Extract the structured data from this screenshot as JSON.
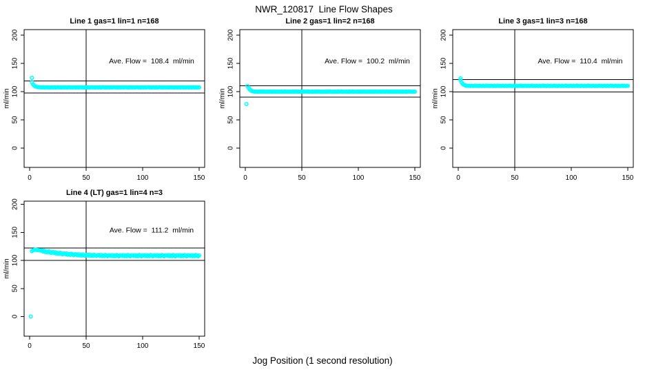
{
  "figure": {
    "title": "NWR_120817  Line Flow Shapes",
    "xlabel": "Jog Position (1 second resolution)",
    "background_color": "#ffffff",
    "point_color": "#00ffff",
    "line_color": "#000000",
    "point_style": "open-circle"
  },
  "chart_data": [
    {
      "type": "scatter",
      "id": "line-1",
      "title": "Line 1 gas=1 lin=1 n=168",
      "line": "Line 1",
      "gas": 1,
      "lin": 1,
      "n": 168,
      "annotation": "Ave. Flow =  108.4  ml/min",
      "ave_flow": 108.4,
      "ylabel": "ml/min",
      "x_ticks": [
        0,
        50,
        100,
        150
      ],
      "y_ticks": [
        0,
        50,
        100,
        150,
        200
      ],
      "xlim": [
        -5,
        155
      ],
      "ylim": [
        -36,
        210
      ],
      "vline_x": 50,
      "hlines": [
        119.2,
        97.6
      ],
      "grid_pos": {
        "row": 0,
        "col": 0
      },
      "outliers": [
        [
          2,
          124.5
        ]
      ],
      "x_start": 2,
      "y_values": [
        116.8,
        112.9,
        110.7,
        109.4,
        108.6,
        108.1,
        107.9,
        107.7,
        107.6,
        107.3,
        107.8,
        107.2,
        107.5,
        107.9,
        107.4,
        107.6,
        107.2,
        107.7,
        107.5,
        107.3,
        107.8,
        107.2,
        107.5,
        107.9,
        107.4,
        107.6,
        107.2,
        107.7,
        107.5,
        107.3,
        107.8,
        107.2,
        107.5,
        107.9,
        107.4,
        107.6,
        107.2,
        107.7,
        107.5,
        107.3,
        107.8,
        107.2,
        107.5,
        107.9,
        107.4,
        107.6,
        107.2,
        107.7,
        107.5,
        107.3,
        107.8,
        107.2,
        107.5,
        107.9,
        107.4,
        107.6,
        107.2,
        107.7,
        107.5,
        107.3,
        107.8,
        107.2,
        107.5,
        107.9,
        107.4,
        107.6,
        107.2,
        107.7,
        107.5,
        107.3,
        107.8,
        107.2,
        107.5,
        107.9,
        107.4,
        107.6,
        107.2,
        107.7,
        107.5,
        107.3,
        107.8,
        107.2,
        107.5,
        107.9,
        107.4,
        107.6,
        107.2,
        107.7,
        107.5,
        107.3,
        107.8,
        107.2,
        107.5,
        107.9,
        107.4,
        107.6,
        107.2,
        107.7,
        107.5,
        107.3,
        107.8,
        107.2,
        107.5,
        107.9,
        107.4,
        107.6,
        107.2,
        107.7,
        107.5,
        107.3,
        107.8,
        107.2,
        107.5,
        107.9,
        107.4,
        107.6,
        107.2,
        107.7,
        107.5,
        107.3,
        107.8,
        107.2,
        107.5,
        107.9,
        107.4,
        107.6,
        107.2,
        107.7,
        107.5,
        107.3,
        107.8,
        107.2,
        107.5,
        107.9,
        107.4,
        107.6,
        107.2,
        107.7,
        107.5,
        107.3,
        107.8,
        107.2,
        107.5,
        107.9,
        107.4,
        107.6,
        107.2,
        107.7,
        107.5
      ]
    },
    {
      "type": "scatter",
      "id": "line-2",
      "title": "Line 2 gas=1 lin=2 n=168",
      "line": "Line 2",
      "gas": 1,
      "lin": 2,
      "n": 168,
      "annotation": "Ave. Flow =  100.2  ml/min",
      "ave_flow": 100.2,
      "ylabel": "ml/min",
      "x_ticks": [
        0,
        50,
        100,
        150
      ],
      "y_ticks": [
        0,
        50,
        100,
        150,
        200
      ],
      "xlim": [
        -5,
        155
      ],
      "ylim": [
        -36,
        210
      ],
      "vline_x": 50,
      "hlines": [
        110.2,
        90.2
      ],
      "grid_pos": {
        "row": 0,
        "col": 1
      },
      "outliers": [
        [
          1,
          78
        ]
      ],
      "x_start": 2,
      "y_values": [
        110.0,
        106.3,
        103.8,
        102.1,
        101.0,
        100.4,
        100.1,
        100.0,
        99.9,
        99.7,
        100.2,
        99.6,
        99.9,
        100.3,
        99.8,
        100.0,
        99.6,
        100.1,
        99.9,
        99.7,
        100.2,
        99.6,
        99.9,
        100.3,
        99.8,
        100.0,
        99.6,
        100.1,
        99.9,
        99.7,
        100.2,
        99.6,
        99.9,
        100.3,
        99.8,
        100.0,
        99.6,
        100.1,
        99.9,
        99.7,
        100.2,
        99.6,
        99.9,
        100.3,
        99.8,
        100.0,
        99.6,
        100.1,
        99.9,
        99.7,
        100.2,
        99.6,
        99.9,
        100.3,
        99.8,
        100.0,
        99.6,
        100.1,
        99.9,
        99.7,
        100.2,
        99.6,
        99.9,
        100.3,
        99.8,
        100.0,
        99.6,
        100.1,
        99.9,
        99.7,
        100.2,
        99.6,
        99.9,
        100.3,
        99.8,
        100.0,
        99.6,
        100.1,
        99.9,
        99.7,
        100.2,
        99.6,
        99.9,
        100.3,
        99.8,
        100.0,
        99.6,
        100.1,
        99.9,
        99.7,
        100.2,
        99.6,
        99.9,
        100.3,
        99.8,
        100.0,
        99.6,
        100.1,
        99.9,
        99.7,
        100.2,
        99.6,
        99.9,
        100.3,
        99.8,
        100.0,
        99.6,
        100.1,
        99.9,
        99.7,
        100.2,
        99.6,
        99.9,
        100.3,
        99.8,
        100.0,
        99.6,
        100.1,
        99.9,
        99.7,
        100.2,
        99.6,
        99.9,
        100.3,
        99.8,
        100.0,
        99.6,
        100.1,
        99.9,
        99.7,
        100.2,
        99.6,
        99.9,
        100.3,
        99.8,
        100.0,
        99.6,
        100.1,
        99.9,
        99.7,
        100.2,
        99.6,
        99.9,
        100.3,
        99.8,
        100.0,
        99.6,
        100.1,
        99.9
      ]
    },
    {
      "type": "scatter",
      "id": "line-3",
      "title": "Line 3 gas=1 lin=3 n=168",
      "line": "Line 3",
      "gas": 1,
      "lin": 3,
      "n": 168,
      "annotation": "Ave. Flow =  110.4  ml/min",
      "ave_flow": 110.4,
      "ylabel": "ml/min",
      "x_ticks": [
        0,
        50,
        100,
        150
      ],
      "y_ticks": [
        0,
        50,
        100,
        150,
        200
      ],
      "xlim": [
        -5,
        155
      ],
      "ylim": [
        -36,
        210
      ],
      "vline_x": 50,
      "hlines": [
        121.4,
        99.4
      ],
      "grid_pos": {
        "row": 0,
        "col": 2
      },
      "outliers": [
        [
          2,
          123.5
        ]
      ],
      "x_start": 2,
      "y_values": [
        120.5,
        116.2,
        113.6,
        112.0,
        111.1,
        110.6,
        110.4,
        110.3,
        110.2,
        110.0,
        110.5,
        109.9,
        110.2,
        110.6,
        110.1,
        110.3,
        109.9,
        110.4,
        110.2,
        110.0,
        110.5,
        109.9,
        110.2,
        110.6,
        110.1,
        110.3,
        109.9,
        110.4,
        110.2,
        110.0,
        110.5,
        109.9,
        110.2,
        110.6,
        110.1,
        110.3,
        109.9,
        110.4,
        110.2,
        110.0,
        110.5,
        109.9,
        110.2,
        110.6,
        110.1,
        110.3,
        109.9,
        110.4,
        110.2,
        110.0,
        110.5,
        109.9,
        110.2,
        110.6,
        110.1,
        110.3,
        109.9,
        110.4,
        110.2,
        110.0,
        110.5,
        109.9,
        110.2,
        110.6,
        110.1,
        110.3,
        109.9,
        110.4,
        110.2,
        110.0,
        110.5,
        109.9,
        110.2,
        110.6,
        110.1,
        110.3,
        109.9,
        110.4,
        110.2,
        110.0,
        110.5,
        109.9,
        110.2,
        110.6,
        110.1,
        110.3,
        109.9,
        110.4,
        110.2,
        110.0,
        110.5,
        109.9,
        110.2,
        110.6,
        110.1,
        110.3,
        109.9,
        110.4,
        110.2,
        110.0,
        110.5,
        109.9,
        110.2,
        110.6,
        110.1,
        110.3,
        109.9,
        110.4,
        110.2,
        110.0,
        110.5,
        109.9,
        110.2,
        110.6,
        110.1,
        110.3,
        109.9,
        110.4,
        110.2,
        110.0,
        110.5,
        109.9,
        110.2,
        110.6,
        110.1,
        110.3,
        109.9,
        110.4,
        110.2,
        110.0,
        110.5,
        109.9,
        110.2,
        110.6,
        110.1,
        110.3,
        109.9,
        110.4,
        110.2,
        110.0,
        110.5,
        109.9,
        110.2,
        110.6,
        110.1,
        110.3,
        109.9,
        110.4,
        110.2
      ]
    },
    {
      "type": "scatter",
      "id": "line-4",
      "title": "Line 4 (LT) gas=1 lin=4 n=3",
      "line": "Line 4 (LT)",
      "gas": 1,
      "lin": 4,
      "n": 3,
      "annotation": "Ave. Flow =  111.2  ml/min",
      "ave_flow": 111.2,
      "ylabel": "ml/min",
      "x_ticks": [
        0,
        50,
        100,
        150
      ],
      "y_ticks": [
        0,
        50,
        100,
        150,
        200
      ],
      "xlim": [
        -5,
        155
      ],
      "ylim": [
        -36,
        210
      ],
      "vline_x": 50,
      "hlines": [
        122.3,
        100.1
      ],
      "grid_pos": {
        "row": 1,
        "col": 0
      },
      "outliers": [
        [
          1,
          0
        ]
      ],
      "x_start": 2,
      "y_values": [
        116.5,
        117.8,
        118.6,
        119.0,
        118.8,
        118.5,
        118.2,
        117.8,
        117.4,
        117.7,
        115.9,
        117.3,
        114.8,
        115.8,
        114.3,
        116.1,
        114.7,
        113.2,
        114.6,
        114.6,
        112.9,
        114.4,
        112.0,
        113.1,
        111.7,
        113.6,
        112.3,
        110.9,
        112.4,
        112.4,
        110.9,
        112.4,
        110.1,
        111.3,
        109.9,
        111.9,
        110.6,
        109.3,
        110.9,
        111.0,
        109.4,
        111.0,
        108.8,
        110.0,
        108.7,
        110.7,
        109.6,
        108.3,
        109.9,
        110.0,
        108.6,
        110.2,
        108.0,
        109.3,
        108.0,
        110.1,
        108.9,
        107.7,
        109.3,
        109.5,
        108.1,
        109.7,
        107.6,
        108.9,
        107.6,
        109.7,
        108.6,
        107.4,
        109.0,
        109.2,
        107.8,
        109.5,
        107.4,
        108.7,
        107.5,
        109.6,
        108.5,
        107.3,
        109.0,
        109.2,
        107.8,
        109.5,
        107.4,
        108.7,
        107.5,
        109.6,
        108.5,
        107.3,
        109.0,
        109.2,
        107.8,
        109.5,
        107.4,
        108.7,
        107.5,
        109.6,
        108.5,
        107.3,
        109.0,
        109.2,
        107.8,
        109.5,
        107.4,
        108.7,
        107.5,
        109.6,
        108.5,
        107.3,
        109.0,
        109.2,
        107.8,
        109.5,
        107.4,
        108.7,
        107.5,
        109.6,
        108.5,
        107.3,
        109.0,
        109.2,
        107.8,
        109.5,
        107.4,
        108.7,
        107.5,
        109.6,
        108.5,
        107.3,
        109.0,
        109.2,
        107.8,
        109.5,
        107.4,
        108.7,
        107.5,
        109.6,
        108.5,
        107.3,
        109.0,
        109.2,
        107.8,
        109.5,
        107.4,
        108.7,
        107.5,
        109.6,
        108.5,
        107.3,
        109.0
      ]
    }
  ]
}
